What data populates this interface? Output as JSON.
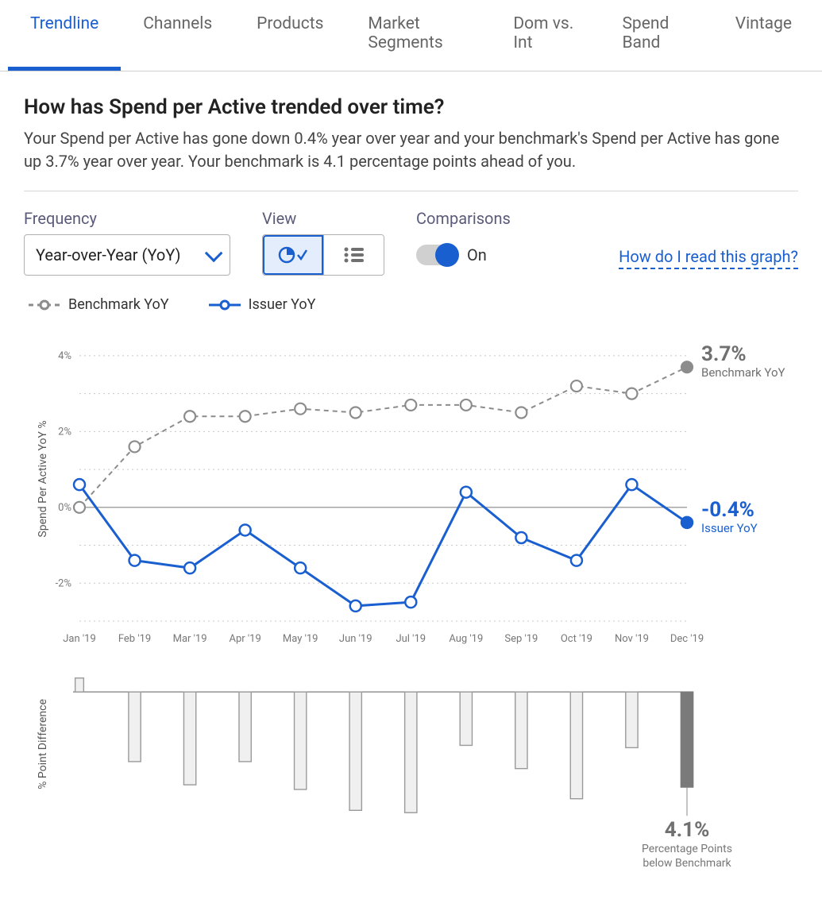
{
  "tabs": [
    {
      "label": "Trendline",
      "active": true
    },
    {
      "label": "Channels",
      "active": false
    },
    {
      "label": "Products",
      "active": false
    },
    {
      "label": "Market Segments",
      "active": false
    },
    {
      "label": "Dom vs. Int",
      "active": false
    },
    {
      "label": "Spend Band",
      "active": false
    },
    {
      "label": "Vintage",
      "active": false
    }
  ],
  "title": "How has Spend per Active trended over time?",
  "subtitle": "Your Spend per Active has gone down 0.4% year over year and your benchmark's Spend per Active has gone up 3.7% year over year. Your benchmark is 4.1 percentage points ahead of you.",
  "controls": {
    "frequency_label": "Frequency",
    "frequency_value": "Year-over-Year (YoY)",
    "view_label": "View",
    "comparisons_label": "Comparisons",
    "comparisons_state": "On",
    "help_link": "How do I read this graph?"
  },
  "legend": {
    "benchmark": "Benchmark YoY",
    "issuer": "Issuer YoY"
  },
  "chart": {
    "type": "line",
    "y_axis_label": "Spend Per Active YoY %",
    "x_categories": [
      "Jan '19",
      "Feb '19",
      "Mar '19",
      "Apr '19",
      "May '19",
      "Jun '19",
      "Jul '19",
      "Aug '19",
      "Sep '19",
      "Oct '19",
      "Nov '19",
      "Dec '19"
    ],
    "y_ticks": [
      -2,
      0,
      2,
      4
    ],
    "y_min": -3,
    "y_max": 4.5,
    "benchmark_series": {
      "values": [
        0.0,
        1.6,
        2.4,
        2.4,
        2.6,
        2.5,
        2.7,
        2.7,
        2.5,
        3.2,
        3.0,
        3.7
      ],
      "color": "#8c8c8c",
      "line_dash": "6,5",
      "marker": "circle-open",
      "marker_size": 7,
      "line_width": 2
    },
    "issuer_series": {
      "values": [
        0.6,
        -1.4,
        -1.6,
        -0.6,
        -1.6,
        -2.6,
        -2.5,
        0.4,
        -0.8,
        -1.4,
        0.6,
        -0.4
      ],
      "color": "#1a5fd0",
      "line_dash": "none",
      "marker": "circle-open",
      "marker_size": 7,
      "line_width": 3
    },
    "callouts": {
      "benchmark": {
        "value": "3.7%",
        "label": "Benchmark YoY",
        "color": "#707070"
      },
      "issuer": {
        "value": "-0.4%",
        "label": "Issuer YoY",
        "color": "#1a5fd0"
      }
    },
    "grid_color": "#c8c8c8",
    "zero_line_color": "#888888",
    "background_color": "#ffffff",
    "label_fontsize": 14,
    "tick_fontsize": 13
  },
  "diff_chart": {
    "type": "bar",
    "y_axis_label": "% Point Difference",
    "values": [
      0.6,
      -3.0,
      -4.0,
      -3.0,
      -4.2,
      -5.1,
      -5.2,
      -2.3,
      -3.3,
      -4.6,
      -2.4,
      -4.1
    ],
    "y_min": -5.5,
    "y_max": 1.0,
    "bar_width": 0.22,
    "bar_border_color": "#9a9a9a",
    "bar_fill_color": "#f0f0f0",
    "highlight_fill_color": "#7a7a7a",
    "highlight_index": 11,
    "callout": {
      "value": "4.1%",
      "label_line1": "Percentage Points",
      "label_line2": "below Benchmark",
      "color": "#707070"
    }
  }
}
